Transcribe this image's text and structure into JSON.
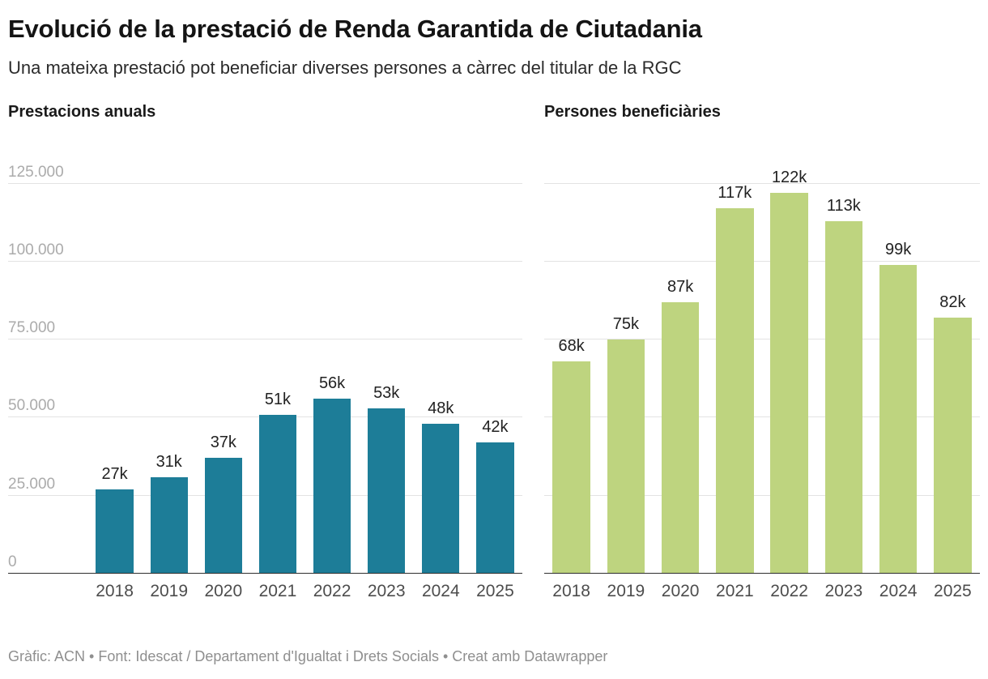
{
  "header": {
    "title": "Evolució de la prestació de Renda Garantida de Ciutadania",
    "subtitle": "Una mateixa prestació pot beneficiar diverses persones a càrrec del titular de la RGC"
  },
  "y_axis": {
    "ymax": 135000,
    "grid": "horizontal",
    "ticks": [
      {
        "value": 0,
        "label": "0"
      },
      {
        "value": 25000,
        "label": "25.000"
      },
      {
        "value": 50000,
        "label": "50.000"
      },
      {
        "value": 75000,
        "label": "75.000"
      },
      {
        "value": 100000,
        "label": "100.000"
      },
      {
        "value": 125000,
        "label": "125.000"
      }
    ]
  },
  "chart_data": [
    {
      "type": "bar",
      "title": "Prestacions anuals",
      "color": "#1d7d98",
      "categories": [
        "2018",
        "2019",
        "2020",
        "2021",
        "2022",
        "2023",
        "2024",
        "2025"
      ],
      "values": [
        27000,
        31000,
        37000,
        51000,
        56000,
        53000,
        48000,
        42000
      ],
      "value_labels": [
        "27k",
        "31k",
        "37k",
        "51k",
        "56k",
        "53k",
        "48k",
        "42k"
      ],
      "ylim": [
        0,
        135000
      ],
      "show_y_labels": true,
      "legend": "none"
    },
    {
      "type": "bar",
      "title": "Persones beneficiàries",
      "color": "#bed47f",
      "categories": [
        "2018",
        "2019",
        "2020",
        "2021",
        "2022",
        "2023",
        "2024",
        "2025"
      ],
      "values": [
        68000,
        75000,
        87000,
        117000,
        122000,
        113000,
        99000,
        82000
      ],
      "value_labels": [
        "68k",
        "75k",
        "87k",
        "117k",
        "122k",
        "113k",
        "99k",
        "82k"
      ],
      "ylim": [
        0,
        135000
      ],
      "show_y_labels": false,
      "legend": "none"
    }
  ],
  "footer": {
    "credit": "Gràfic: ACN • Font: Idescat / Departament d'Igualtat i Drets Socials • Creat amb Datawrapper"
  }
}
